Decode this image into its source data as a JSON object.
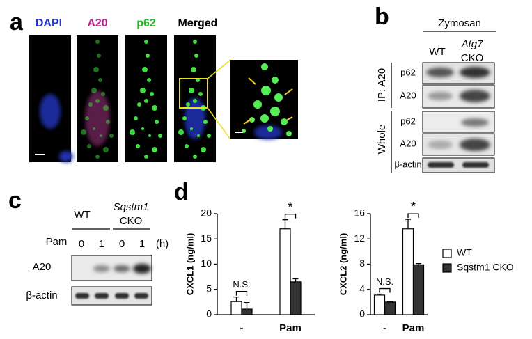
{
  "panel_a": {
    "label": "a",
    "channels": [
      "DAPI",
      "A20",
      "p62",
      "Merged"
    ]
  },
  "panel_b": {
    "label": "b",
    "treatment": "Zymosan",
    "columns": [
      "WT",
      "Atg7",
      "CKO"
    ],
    "groups": [
      "IP: A20",
      "Whole"
    ],
    "rows": [
      "p62",
      "A20",
      "p62",
      "A20",
      "β-actin"
    ]
  },
  "panel_c": {
    "label": "c",
    "genotypes": [
      "WT",
      "Sqstm1",
      "CKO"
    ],
    "treatment": "Pam",
    "times": [
      "0",
      "1",
      "0",
      "1"
    ],
    "unit": "(h)",
    "rows": [
      "A20",
      "β-actin"
    ]
  },
  "panel_d": {
    "label": "d"
  },
  "chart_data": [
    {
      "type": "bar",
      "ylabel": "CXCL1 (ng/ml)",
      "categories": [
        "-",
        "Pam"
      ],
      "ylim": [
        0,
        20
      ],
      "yticks": [
        0,
        5,
        10,
        15,
        20
      ],
      "series": [
        {
          "name": "WT",
          "color": "#ffffff",
          "values": [
            2.6,
            17
          ],
          "errors": [
            0.9,
            1.8
          ]
        },
        {
          "name": "Sqstm1 CKO",
          "color": "#333333",
          "values": [
            1.1,
            6.5
          ],
          "errors": [
            1.3,
            0.6
          ]
        }
      ],
      "annotations": [
        "N.S.",
        "*"
      ]
    },
    {
      "type": "bar",
      "ylabel": "CXCL2 (ng/ml)",
      "categories": [
        "-",
        "Pam"
      ],
      "ylim": [
        0,
        16
      ],
      "yticks": [
        0,
        4,
        8,
        12,
        16
      ],
      "series": [
        {
          "name": "WT",
          "color": "#ffffff",
          "values": [
            3.1,
            13.6
          ],
          "errors": [
            0.15,
            1.5
          ]
        },
        {
          "name": "Sqstm1 CKO",
          "color": "#333333",
          "values": [
            2.0,
            7.9
          ],
          "errors": [
            0.1,
            0.2
          ]
        }
      ],
      "annotations": [
        "N.S.",
        "*"
      ]
    }
  ]
}
